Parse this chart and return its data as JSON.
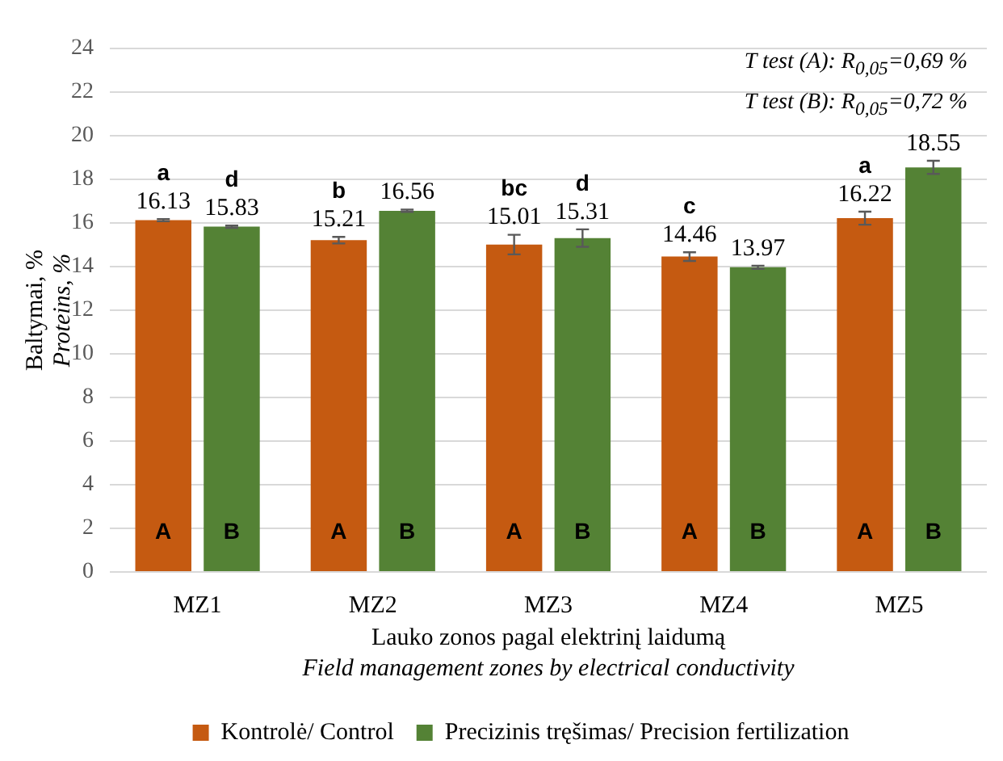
{
  "chart_data": {
    "type": "bar",
    "ylabel": "Baltymai, %\nProteins, %",
    "xlabel": "Lauko zonos pagal elektrinį laidumą\nField management zones by electrical conductivity",
    "categories": [
      "MZ1",
      "MZ2",
      "MZ3",
      "MZ4",
      "MZ5"
    ],
    "series": [
      {
        "name": "Kontrolė/ Control",
        "color": "#c55a11",
        "values": [
          16.13,
          15.21,
          15.01,
          14.46,
          16.22
        ],
        "errors": [
          0.05,
          0.15,
          0.45,
          0.2,
          0.3
        ]
      },
      {
        "name": "Precizinis tręšimas/ Precision fertilization",
        "color": "#548235",
        "values": [
          15.83,
          16.56,
          15.31,
          13.97,
          18.55
        ],
        "errors": [
          0.05,
          0.05,
          0.4,
          0.07,
          0.3
        ]
      }
    ],
    "ylim": [
      0,
      24
    ],
    "yticks": [
      0,
      2,
      4,
      6,
      8,
      10,
      12,
      14,
      16,
      18,
      20,
      22,
      24
    ],
    "grid": "y",
    "legend": "bottom",
    "data_labels": true,
    "annotations": [
      "T test (A):  R$_{0,05}$=0,69 %",
      "T test (B):  R$_{0,05}$=0,72 %",
      {
        "text": "a",
        "x": "MZ1",
        "y": 16.13
      },
      {
        "text": "d",
        "x": "MZ1",
        "y": 15.83
      },
      {
        "text": "b",
        "x": "MZ2",
        "y": 15.21
      },
      {
        "text": "bc",
        "x": "MZ3",
        "y": 15.01
      },
      {
        "text": "d",
        "x": "MZ3",
        "y": 15.31
      },
      {
        "text": "c",
        "x": "MZ4",
        "y": 14.46
      },
      {
        "text": "a",
        "x": "MZ5",
        "y": 16.22
      },
      {
        "text": "A",
        "x": "MZ1",
        "y": 1.8
      },
      {
        "text": "B",
        "x": "MZ1",
        "y": 1.8
      },
      {
        "text": "A",
        "x": "MZ2",
        "y": 1.8
      },
      {
        "text": "B",
        "x": "MZ2",
        "y": 1.8
      },
      {
        "text": "A",
        "x": "MZ3",
        "y": 1.8
      },
      {
        "text": "B",
        "x": "MZ3",
        "y": 1.8
      },
      {
        "text": "A",
        "x": "MZ4",
        "y": 1.8
      },
      {
        "text": "B",
        "x": "MZ4",
        "y": 1.8
      },
      {
        "text": "A",
        "x": "MZ5",
        "y": 1.8
      },
      {
        "text": "B",
        "x": "MZ5",
        "y": 1.8
      }
    ]
  }
}
